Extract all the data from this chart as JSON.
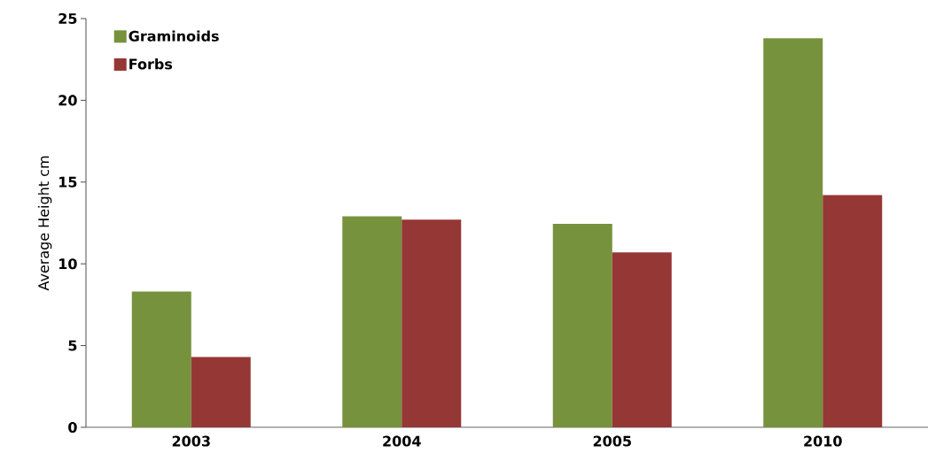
{
  "chart_data": {
    "type": "bar",
    "ylabel": "Average Height cm",
    "categories": [
      "2003",
      "2004",
      "2005",
      "2010"
    ],
    "series": [
      {
        "name": "Graminoids",
        "color": "#76923c",
        "values": [
          8.3,
          12.9,
          12.45,
          23.8
        ]
      },
      {
        "name": "Forbs",
        "color": "#953735",
        "values": [
          4.3,
          12.7,
          10.7,
          14.2
        ]
      }
    ],
    "ylim": [
      0,
      25
    ],
    "yticks": [
      0,
      5,
      10,
      15,
      20,
      25
    ],
    "legend": "top left"
  }
}
